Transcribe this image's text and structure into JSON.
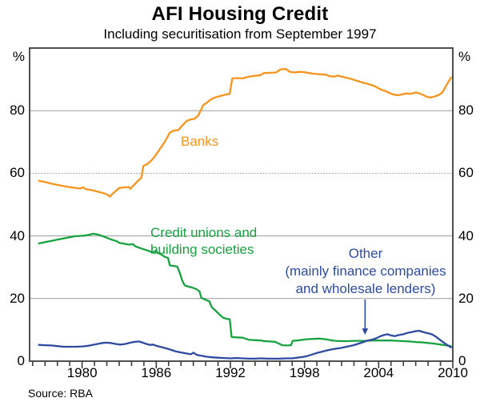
{
  "chart_data": {
    "type": "line",
    "title": "AFI Housing Credit",
    "subtitle": "Including securitisation from September 1997",
    "source_note": "Source: RBA",
    "y_unit": "%",
    "x_range": [
      1975.75,
      2010
    ],
    "y_range": [
      0,
      100
    ],
    "y_gridlines": [
      20,
      40,
      60,
      80
    ],
    "dotted_gridline": 60,
    "y_tick_labels": [
      "0",
      "20",
      "40",
      "60",
      "80"
    ],
    "y_tick_values": [
      0,
      20,
      40,
      60,
      80
    ],
    "x_tick_labels": [
      "1980",
      "1986",
      "1992",
      "1998",
      "2004",
      "2010"
    ],
    "x_tick_values": [
      1980,
      1986,
      1992,
      1998,
      2004,
      2010
    ],
    "x_minor_tick_step": 1,
    "colors": {
      "banks": "#F7941E",
      "credit_unions": "#17A13F",
      "other": "#2E4BA0",
      "gridline": "#9A9A9A",
      "axis": "#3C3C3C"
    },
    "annotations": {
      "banks_label": "Banks",
      "cubs_label_line1": "Credit unions and",
      "cubs_label_line2": "building societies",
      "other_label_line1": "Other",
      "other_label_line2": "(mainly finance companies",
      "other_label_line3": "and wholesale lenders)",
      "arrow": {
        "x": 2002.9,
        "from_value": 19.7,
        "to_value": 8.4
      }
    },
    "series": [
      {
        "name": "Banks",
        "color": "#F7941E",
        "points": [
          [
            1976.5,
            57.6
          ],
          [
            1977.0,
            57.2
          ],
          [
            1977.5,
            56.7
          ],
          [
            1978.0,
            56.3
          ],
          [
            1978.5,
            55.9
          ],
          [
            1979.0,
            55.6
          ],
          [
            1979.5,
            55.3
          ],
          [
            1979.9,
            55.2
          ],
          [
            1980.1,
            55.5
          ],
          [
            1980.3,
            54.9
          ],
          [
            1980.8,
            54.6
          ],
          [
            1981.2,
            54.2
          ],
          [
            1981.6,
            53.8
          ],
          [
            1981.9,
            53.4
          ],
          [
            1982.1,
            53.1
          ],
          [
            1982.25,
            52.5
          ],
          [
            1982.4,
            53.2
          ],
          [
            1982.8,
            54.6
          ],
          [
            1983.0,
            55.3
          ],
          [
            1983.4,
            55.5
          ],
          [
            1983.8,
            55.6
          ],
          [
            1983.9,
            55.0
          ],
          [
            1984.2,
            56.3
          ],
          [
            1984.5,
            57.5
          ],
          [
            1984.8,
            58.6
          ],
          [
            1984.95,
            62.3
          ],
          [
            1985.3,
            63.0
          ],
          [
            1985.7,
            64.5
          ],
          [
            1986.0,
            66.0
          ],
          [
            1986.3,
            67.8
          ],
          [
            1986.6,
            69.5
          ],
          [
            1986.9,
            71.5
          ],
          [
            1987.1,
            73.0
          ],
          [
            1987.4,
            73.6
          ],
          [
            1987.8,
            73.8
          ],
          [
            1988.0,
            74.8
          ],
          [
            1988.3,
            76.0
          ],
          [
            1988.5,
            76.8
          ],
          [
            1988.8,
            77.2
          ],
          [
            1989.1,
            77.4
          ],
          [
            1989.4,
            78.5
          ],
          [
            1989.6,
            80.0
          ],
          [
            1989.8,
            81.8
          ],
          [
            1990.0,
            82.3
          ],
          [
            1990.3,
            83.2
          ],
          [
            1990.6,
            84.0
          ],
          [
            1991.0,
            84.5
          ],
          [
            1991.4,
            84.9
          ],
          [
            1991.7,
            85.2
          ],
          [
            1991.95,
            85.4
          ],
          [
            1992.15,
            90.3
          ],
          [
            1992.6,
            90.4
          ],
          [
            1993.0,
            90.3
          ],
          [
            1993.4,
            90.8
          ],
          [
            1993.9,
            91.1
          ],
          [
            1994.4,
            91.3
          ],
          [
            1994.7,
            92.0
          ],
          [
            1995.2,
            92.1
          ],
          [
            1995.7,
            92.2
          ],
          [
            1996.05,
            93.2
          ],
          [
            1996.5,
            93.3
          ],
          [
            1996.8,
            92.4
          ],
          [
            1997.2,
            92.2
          ],
          [
            1997.6,
            92.4
          ],
          [
            1998.0,
            92.3
          ],
          [
            1998.4,
            92.0
          ],
          [
            1998.8,
            91.8
          ],
          [
            1999.3,
            91.6
          ],
          [
            1999.7,
            91.5
          ],
          [
            2000.05,
            91.0
          ],
          [
            2000.4,
            90.9
          ],
          [
            2000.7,
            91.2
          ],
          [
            2001.0,
            90.9
          ],
          [
            2001.4,
            90.5
          ],
          [
            2001.8,
            90.1
          ],
          [
            2002.2,
            89.6
          ],
          [
            2002.6,
            89.1
          ],
          [
            2003.0,
            88.7
          ],
          [
            2003.4,
            88.2
          ],
          [
            2003.8,
            87.6
          ],
          [
            2004.1,
            86.9
          ],
          [
            2004.5,
            86.3
          ],
          [
            2004.8,
            85.8
          ],
          [
            2005.1,
            85.3
          ],
          [
            2005.5,
            84.9
          ],
          [
            2005.8,
            85.1
          ],
          [
            2006.2,
            85.5
          ],
          [
            2006.6,
            85.4
          ],
          [
            2007.0,
            85.8
          ],
          [
            2007.4,
            85.4
          ],
          [
            2007.7,
            84.8
          ],
          [
            2008.0,
            84.3
          ],
          [
            2008.2,
            84.2
          ],
          [
            2008.5,
            84.5
          ],
          [
            2008.8,
            84.9
          ],
          [
            2009.1,
            85.6
          ],
          [
            2009.3,
            86.8
          ],
          [
            2009.5,
            88.2
          ],
          [
            2009.7,
            89.6
          ],
          [
            2009.85,
            90.6
          ]
        ]
      },
      {
        "name": "Credit unions and building societies",
        "color": "#17A13F",
        "points": [
          [
            1976.5,
            37.6
          ],
          [
            1977.0,
            38.0
          ],
          [
            1977.5,
            38.4
          ],
          [
            1978.0,
            38.8
          ],
          [
            1978.5,
            39.2
          ],
          [
            1979.0,
            39.6
          ],
          [
            1979.4,
            39.9
          ],
          [
            1979.8,
            40.0
          ],
          [
            1980.2,
            40.1
          ],
          [
            1980.6,
            40.4
          ],
          [
            1980.9,
            40.7
          ],
          [
            1981.2,
            40.5
          ],
          [
            1981.6,
            40.0
          ],
          [
            1982.0,
            39.4
          ],
          [
            1982.4,
            38.8
          ],
          [
            1982.8,
            38.3
          ],
          [
            1983.0,
            37.8
          ],
          [
            1983.4,
            37.5
          ],
          [
            1983.8,
            37.2
          ],
          [
            1984.1,
            37.4
          ],
          [
            1984.3,
            36.7
          ],
          [
            1984.7,
            36.1
          ],
          [
            1985.1,
            35.6
          ],
          [
            1985.5,
            35.0
          ],
          [
            1985.8,
            34.8
          ],
          [
            1985.95,
            35.3
          ],
          [
            1986.1,
            34.6
          ],
          [
            1986.4,
            34.1
          ],
          [
            1986.7,
            33.3
          ],
          [
            1986.95,
            33.0
          ],
          [
            1987.1,
            30.6
          ],
          [
            1987.4,
            30.4
          ],
          [
            1987.7,
            30.2
          ],
          [
            1987.9,
            28.2
          ],
          [
            1988.1,
            25.8
          ],
          [
            1988.3,
            24.2
          ],
          [
            1988.6,
            23.8
          ],
          [
            1988.9,
            23.5
          ],
          [
            1989.2,
            23.1
          ],
          [
            1989.5,
            22.3
          ],
          [
            1989.65,
            20.2
          ],
          [
            1990.0,
            19.6
          ],
          [
            1990.3,
            19.1
          ],
          [
            1990.5,
            17.2
          ],
          [
            1990.8,
            16.1
          ],
          [
            1991.1,
            15.0
          ],
          [
            1991.4,
            13.9
          ],
          [
            1991.7,
            13.5
          ],
          [
            1991.95,
            13.4
          ],
          [
            1992.1,
            7.7
          ],
          [
            1992.5,
            7.6
          ],
          [
            1993.0,
            7.5
          ],
          [
            1993.5,
            6.8
          ],
          [
            1994.0,
            6.7
          ],
          [
            1994.5,
            6.6
          ],
          [
            1994.7,
            6.4
          ],
          [
            1995.2,
            6.3
          ],
          [
            1995.6,
            6.2
          ],
          [
            1996.2,
            5.1
          ],
          [
            1996.6,
            5.0
          ],
          [
            1996.9,
            5.1
          ],
          [
            1997.05,
            6.5
          ],
          [
            1997.4,
            6.6
          ],
          [
            1997.8,
            6.8
          ],
          [
            1998.2,
            7.0
          ],
          [
            1998.7,
            7.1
          ],
          [
            1999.2,
            7.2
          ],
          [
            1999.7,
            7.0
          ],
          [
            2000.1,
            6.7
          ],
          [
            2000.5,
            6.5
          ],
          [
            2001.0,
            6.4
          ],
          [
            2001.5,
            6.4
          ],
          [
            2002.0,
            6.5
          ],
          [
            2002.5,
            6.5
          ],
          [
            2003.0,
            6.5
          ],
          [
            2003.5,
            6.6
          ],
          [
            2004.0,
            6.6
          ],
          [
            2004.5,
            6.6
          ],
          [
            2005.0,
            6.6
          ],
          [
            2005.5,
            6.5
          ],
          [
            2006.0,
            6.4
          ],
          [
            2006.5,
            6.3
          ],
          [
            2007.0,
            6.1
          ],
          [
            2007.5,
            6.0
          ],
          [
            2008.0,
            5.8
          ],
          [
            2008.5,
            5.6
          ],
          [
            2009.0,
            5.3
          ],
          [
            2009.4,
            5.1
          ],
          [
            2009.85,
            4.8
          ]
        ]
      },
      {
        "name": "Other (mainly finance companies and wholesale lenders)",
        "color": "#2E4BA0",
        "points": [
          [
            1976.5,
            5.2
          ],
          [
            1977.0,
            5.1
          ],
          [
            1977.5,
            5.0
          ],
          [
            1978.0,
            4.8
          ],
          [
            1978.5,
            4.6
          ],
          [
            1979.0,
            4.6
          ],
          [
            1979.5,
            4.6
          ],
          [
            1980.0,
            4.7
          ],
          [
            1980.5,
            4.9
          ],
          [
            1981.0,
            5.3
          ],
          [
            1981.5,
            5.7
          ],
          [
            1981.9,
            5.9
          ],
          [
            1982.3,
            5.8
          ],
          [
            1982.7,
            5.5
          ],
          [
            1983.1,
            5.3
          ],
          [
            1983.5,
            5.5
          ],
          [
            1983.9,
            5.9
          ],
          [
            1984.3,
            6.2
          ],
          [
            1984.6,
            6.3
          ],
          [
            1984.9,
            5.9
          ],
          [
            1985.2,
            5.5
          ],
          [
            1985.5,
            5.2
          ],
          [
            1985.75,
            5.3
          ],
          [
            1986.0,
            4.9
          ],
          [
            1986.4,
            4.5
          ],
          [
            1986.8,
            4.1
          ],
          [
            1987.2,
            3.6
          ],
          [
            1987.6,
            3.1
          ],
          [
            1988.0,
            2.8
          ],
          [
            1988.4,
            2.5
          ],
          [
            1988.8,
            2.2
          ],
          [
            1989.0,
            2.7
          ],
          [
            1989.3,
            2.0
          ],
          [
            1989.7,
            1.7
          ],
          [
            1990.1,
            1.4
          ],
          [
            1990.6,
            1.2
          ],
          [
            1991.0,
            1.1
          ],
          [
            1991.5,
            1.0
          ],
          [
            1992.0,
            0.9
          ],
          [
            1992.5,
            1.0
          ],
          [
            1993.0,
            0.9
          ],
          [
            1993.5,
            0.8
          ],
          [
            1994.0,
            0.8
          ],
          [
            1994.5,
            0.9
          ],
          [
            1995.0,
            0.8
          ],
          [
            1995.5,
            0.8
          ],
          [
            1996.0,
            0.8
          ],
          [
            1996.5,
            0.9
          ],
          [
            1997.0,
            0.9
          ],
          [
            1997.4,
            1.1
          ],
          [
            1997.8,
            1.3
          ],
          [
            1998.2,
            1.6
          ],
          [
            1998.6,
            2.1
          ],
          [
            1999.0,
            2.6
          ],
          [
            1999.4,
            3.0
          ],
          [
            1999.9,
            3.5
          ],
          [
            2000.4,
            3.9
          ],
          [
            2000.9,
            4.2
          ],
          [
            2001.4,
            4.6
          ],
          [
            2001.9,
            5.0
          ],
          [
            2002.3,
            5.5
          ],
          [
            2002.7,
            6.0
          ],
          [
            2003.1,
            6.6
          ],
          [
            2003.5,
            6.9
          ],
          [
            2003.8,
            7.3
          ],
          [
            2004.1,
            7.9
          ],
          [
            2004.4,
            8.3
          ],
          [
            2004.7,
            8.6
          ],
          [
            2005.0,
            8.2
          ],
          [
            2005.3,
            8.0
          ],
          [
            2005.6,
            8.3
          ],
          [
            2006.0,
            8.6
          ],
          [
            2006.3,
            9.0
          ],
          [
            2006.7,
            9.3
          ],
          [
            2007.0,
            9.6
          ],
          [
            2007.3,
            9.7
          ],
          [
            2007.6,
            9.3
          ],
          [
            2008.0,
            8.9
          ],
          [
            2008.3,
            8.6
          ],
          [
            2008.6,
            7.9
          ],
          [
            2008.9,
            7.0
          ],
          [
            2009.2,
            6.1
          ],
          [
            2009.5,
            5.3
          ],
          [
            2009.85,
            4.4
          ]
        ]
      }
    ]
  }
}
